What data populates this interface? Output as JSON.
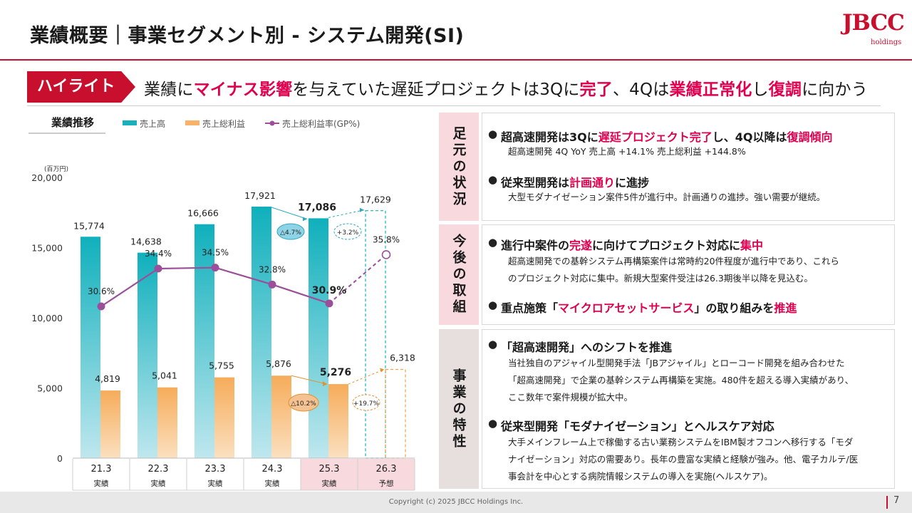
{
  "header": {
    "title": "業績概要｜事業セグメント別 - システム開発(SI)",
    "logo_text": "JBCC",
    "logo_sub": "holdings"
  },
  "highlight": {
    "tag": "ハイライト",
    "parts": [
      {
        "text": "業績に",
        "red": false
      },
      {
        "text": "マイナス影響",
        "red": true
      },
      {
        "text": "を与えていた遅延プロジェクトは3Qに",
        "red": false
      },
      {
        "text": "完了",
        "red": true
      },
      {
        "text": "、4Qは",
        "red": false
      },
      {
        "text": "業績正常化",
        "red": true
      },
      {
        "text": "し",
        "red": false
      },
      {
        "text": "復調",
        "red": true
      },
      {
        "text": "に向かう",
        "red": false
      }
    ]
  },
  "chart_title": "業績推移",
  "chart_data": {
    "type": "bar",
    "categories": [
      "21.3",
      "22.3",
      "23.3",
      "24.3",
      "25.3",
      "26.3"
    ],
    "category_sub": [
      "実績",
      "実績",
      "実績",
      "実績",
      "実績",
      "予想"
    ],
    "unit": "(百万円)",
    "ylim": [
      0,
      20000
    ],
    "yticks": [
      "0",
      "5,000",
      "10,000",
      "15,000",
      "20,000"
    ],
    "series": [
      {
        "name": "売上高",
        "values": [
          15774,
          14638,
          16666,
          17921,
          17086,
          17629
        ],
        "labels": [
          "15,774",
          "14,638",
          "16,666",
          "17,921",
          "17,086",
          "17,629"
        ]
      },
      {
        "name": "売上総利益",
        "values": [
          4819,
          5041,
          5755,
          5876,
          5276,
          6318
        ],
        "labels": [
          "4,819",
          "5,041",
          "5,755",
          "5,876",
          "5,276",
          "6,318"
        ]
      },
      {
        "name": "売上総利益率(GP%)",
        "values": [
          30.6,
          34.4,
          34.5,
          32.8,
          30.9,
          35.8
        ],
        "labels": [
          "30.6%",
          "34.4%",
          "34.5%",
          "32.8%",
          "30.9%",
          "35.8%"
        ]
      }
    ],
    "annotations": [
      {
        "text": "△4.7%",
        "series": "売上高",
        "between": [
          "24.3",
          "25.3"
        ]
      },
      {
        "text": "+3.2%",
        "series": "売上高",
        "between": [
          "25.3",
          "26.3"
        ]
      },
      {
        "text": "△10.2%",
        "series": "売上総利益",
        "between": [
          "24.3",
          "25.3"
        ]
      },
      {
        "text": "+19.7%",
        "series": "売上総利益",
        "between": [
          "25.3",
          "26.3"
        ]
      }
    ],
    "forecast_category": "26.3",
    "highlighted_categories": [
      "25.3",
      "26.3"
    ],
    "colors": {
      "sales": "#19b0bd",
      "gross_profit": "#f7b36a",
      "gp_rate": "#9b4f9a",
      "neg_badge_sales": "#8fd3e6",
      "neg_badge_profit": "#f5c291",
      "highlight_bg": "#f7d9de"
    }
  },
  "panels": [
    {
      "label": "足元の状況",
      "items": [
        {
          "head": [
            {
              "text": "超高速開発は3Qに",
              "red": false
            },
            {
              "text": "遅延プロジェクト完了",
              "red": true
            },
            {
              "text": "し、4Q以降は",
              "red": false
            },
            {
              "text": "復調傾向",
              "red": true
            }
          ],
          "desc": [
            "超高速開発 4Q YoY 売上高 +14.1% 売上総利益 +144.8%"
          ]
        },
        {
          "head": [
            {
              "text": "従来型開発は",
              "red": false
            },
            {
              "text": "計画通り",
              "red": true
            },
            {
              "text": "に進捗",
              "red": false
            }
          ],
          "desc": [
            "大型モダナイゼーション案件5件が進行中。計画通りの進捗。強い需要が継続。"
          ]
        }
      ]
    },
    {
      "label": "今後の取組",
      "items": [
        {
          "head": [
            {
              "text": "進行中案件の",
              "red": false
            },
            {
              "text": "完遂",
              "red": true
            },
            {
              "text": "に向けてプロジェクト対応に",
              "red": false
            },
            {
              "text": "集中",
              "red": true
            }
          ],
          "desc": [
            "超高速開発での基幹システム再構築案件は常時約20件程度が進行中であり、これら",
            "のプロジェクト対応に集中。新規大型案件受注は26.3期後半以降を見込む。"
          ]
        },
        {
          "head": [
            {
              "text": "重点施策「",
              "red": false
            },
            {
              "text": "マイクロアセットサービス",
              "red": true
            },
            {
              "text": "」の取り組みを",
              "red": false
            },
            {
              "text": "推進",
              "red": true
            }
          ],
          "desc": []
        }
      ]
    },
    {
      "label": "事業の特性",
      "items": [
        {
          "head": [
            {
              "text": "「超高速開発」へのシフトを推進",
              "red": false
            }
          ],
          "desc": [
            "当社独自のアジャイル型開発手法「JBアジャイル」とローコード開発を組み合わせた",
            "「超高速開発」で企業の基幹システム再構築を実施。480件を超える導入実績があり、",
            "ここ数年で案件規模が拡大中。"
          ]
        },
        {
          "head": [
            {
              "text": "従来型開発「モダナイゼーション」とヘルスケア対応",
              "red": false
            }
          ],
          "desc": [
            "大手メインフレーム上で稼働する古い業務システムをIBM製オフコンへ移行する「モダ",
            "ナイゼーション」対応の需要あり。長年の豊富な実績と経験が強み。他、電子カルテ/医",
            "事会計を中心とする病院情報システムの導入を実施(ヘルスケア)。"
          ]
        }
      ]
    }
  ],
  "footer": {
    "copyright": "Copyright (c) 2025 JBCC Holdings Inc.",
    "page": "7"
  }
}
